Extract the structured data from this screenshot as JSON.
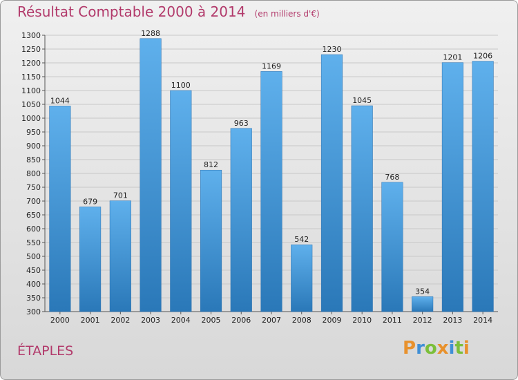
{
  "chart_data": {
    "type": "bar",
    "title": "Résultat Comptable 2000 à 2014",
    "unit": "(en milliers d'€)",
    "categories": [
      "2000",
      "2001",
      "2002",
      "2003",
      "2004",
      "2005",
      "2006",
      "2007",
      "2008",
      "2009",
      "2010",
      "2011",
      "2012",
      "2013",
      "2014"
    ],
    "values": [
      1044,
      679,
      701,
      1288,
      1100,
      812,
      963,
      1169,
      542,
      1230,
      1045,
      768,
      354,
      1201,
      1206
    ],
    "ylim": [
      300,
      1300
    ],
    "ytick_step": 50,
    "grid": true,
    "bar_color": "#3d8fd3",
    "xlabel": "",
    "ylabel": ""
  },
  "footer": {
    "city": "ÉTAPLES",
    "logo_letters": [
      {
        "ch": "P",
        "color": "#e8912c"
      },
      {
        "ch": "r",
        "color": "#3f8fd6"
      },
      {
        "ch": "o",
        "color": "#7bbf3a"
      },
      {
        "ch": "x",
        "color": "#e8912c"
      },
      {
        "ch": "i",
        "color": "#3f8fd6"
      },
      {
        "ch": "t",
        "color": "#7bbf3a"
      },
      {
        "ch": "i",
        "color": "#e8912c"
      }
    ]
  }
}
